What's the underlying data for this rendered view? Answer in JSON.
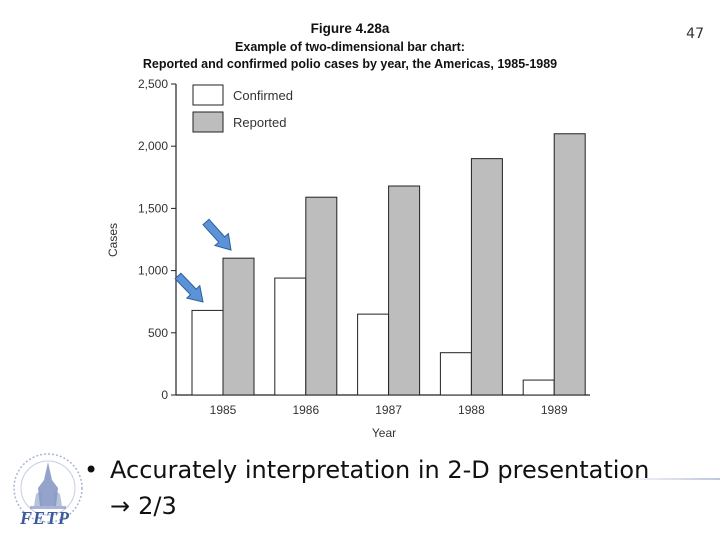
{
  "slide": {
    "number": "47"
  },
  "chart_data": {
    "type": "bar",
    "title": "Figure 4.28a",
    "subtitle_line1": "Example of two-dimensional bar chart:",
    "subtitle_line2": "Reported and confirmed polio cases by year, the Americas, 1985-1989",
    "xlabel": "Year",
    "ylabel": "Cases",
    "ylim": [
      0,
      2500
    ],
    "yticks": [
      0,
      500,
      1000,
      1500,
      2000,
      2500
    ],
    "ytick_labels": [
      "0",
      "500",
      "1,000",
      "1,500",
      "2,000",
      "2,500"
    ],
    "categories": [
      "1985",
      "1986",
      "1987",
      "1988",
      "1989"
    ],
    "series": [
      {
        "name": "Confirmed",
        "color": "#ffffff",
        "values": [
          680,
          940,
          650,
          340,
          120
        ]
      },
      {
        "name": "Reported",
        "color": "#bdbdbd",
        "values": [
          1100,
          1590,
          1680,
          1900,
          2100
        ]
      }
    ],
    "legend_position": "top-left",
    "annotations": [
      "arrow pointing to 1985 Confirmed bar",
      "arrow pointing to 1985 Reported bar"
    ]
  },
  "bullet": {
    "text": "Accurately interpretation in 2-D presentation",
    "sub_arrow": "→",
    "sub_text": "2/3"
  },
  "logo": {
    "text": "FETP"
  }
}
